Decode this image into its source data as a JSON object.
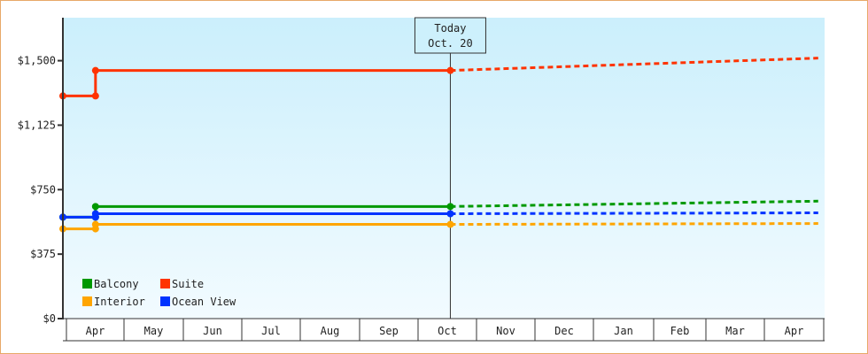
{
  "chart_data": {
    "type": "line",
    "title": "",
    "xlabel": "",
    "ylabel": "",
    "ylim": [
      0,
      1750
    ],
    "y_ticks": [
      "$0",
      "$375",
      "$750",
      "$1,125",
      "$1,500"
    ],
    "y_tick_values": [
      0,
      375,
      750,
      1125,
      1500
    ],
    "x_tick_labels": [
      "Apr",
      "May",
      "Jun",
      "Jul",
      "Aug",
      "Sep",
      "Oct",
      "Nov",
      "Dec",
      "Jan",
      "Feb",
      "Mar",
      "Apr"
    ],
    "grid": false,
    "legend_placement": "bottom-left",
    "today_marker": {
      "line1": "Today",
      "line2": "Oct. 20",
      "date": {
        "month": "Oct",
        "day": 20
      }
    },
    "series": [
      {
        "name": "Balcony",
        "color": "#009900",
        "actual": [
          [
            {
              "month": "Apr",
              "day": 1
            },
            590
          ],
          [
            {
              "month": "Apr",
              "day": 18
            },
            590
          ],
          [
            {
              "month": "Apr",
              "day": 18
            },
            652
          ],
          [
            {
              "month": "Oct",
              "day": 20
            },
            652
          ]
        ],
        "projected": [
          [
            {
              "month": "Oct",
              "day": 20
            },
            652
          ],
          [
            {
              "month": "Apr",
              "day": 30,
              "next_year": true
            },
            683
          ]
        ]
      },
      {
        "name": "Suite",
        "color": "#ff3300",
        "actual": [
          [
            {
              "month": "Apr",
              "day": 1
            },
            1295
          ],
          [
            {
              "month": "Apr",
              "day": 18
            },
            1295
          ],
          [
            {
              "month": "Apr",
              "day": 18
            },
            1443
          ],
          [
            {
              "month": "Oct",
              "day": 20
            },
            1443
          ]
        ],
        "projected": [
          [
            {
              "month": "Oct",
              "day": 20
            },
            1443
          ],
          [
            {
              "month": "Apr",
              "day": 30,
              "next_year": true
            },
            1515
          ]
        ]
      },
      {
        "name": "Interior",
        "color": "#ffa500",
        "actual": [
          [
            {
              "month": "Apr",
              "day": 1
            },
            522
          ],
          [
            {
              "month": "Apr",
              "day": 18
            },
            522
          ],
          [
            {
              "month": "Apr",
              "day": 18
            },
            548
          ],
          [
            {
              "month": "Oct",
              "day": 20
            },
            548
          ]
        ],
        "projected": [
          [
            {
              "month": "Oct",
              "day": 20
            },
            548
          ],
          [
            {
              "month": "Apr",
              "day": 30,
              "next_year": true
            },
            553
          ]
        ]
      },
      {
        "name": "Ocean View",
        "color": "#0033ff",
        "actual": [
          [
            {
              "month": "Apr",
              "day": 1
            },
            590
          ],
          [
            {
              "month": "Apr",
              "day": 18
            },
            590
          ],
          [
            {
              "month": "Apr",
              "day": 18
            },
            610
          ],
          [
            {
              "month": "Oct",
              "day": 20
            },
            610
          ]
        ],
        "projected": [
          [
            {
              "month": "Oct",
              "day": 20
            },
            610
          ],
          [
            {
              "month": "Apr",
              "day": 30,
              "next_year": true
            },
            615
          ]
        ]
      }
    ],
    "background_gradient": [
      "#cbeffc",
      "#f2fbff"
    ],
    "border_color": "#e8a868"
  }
}
